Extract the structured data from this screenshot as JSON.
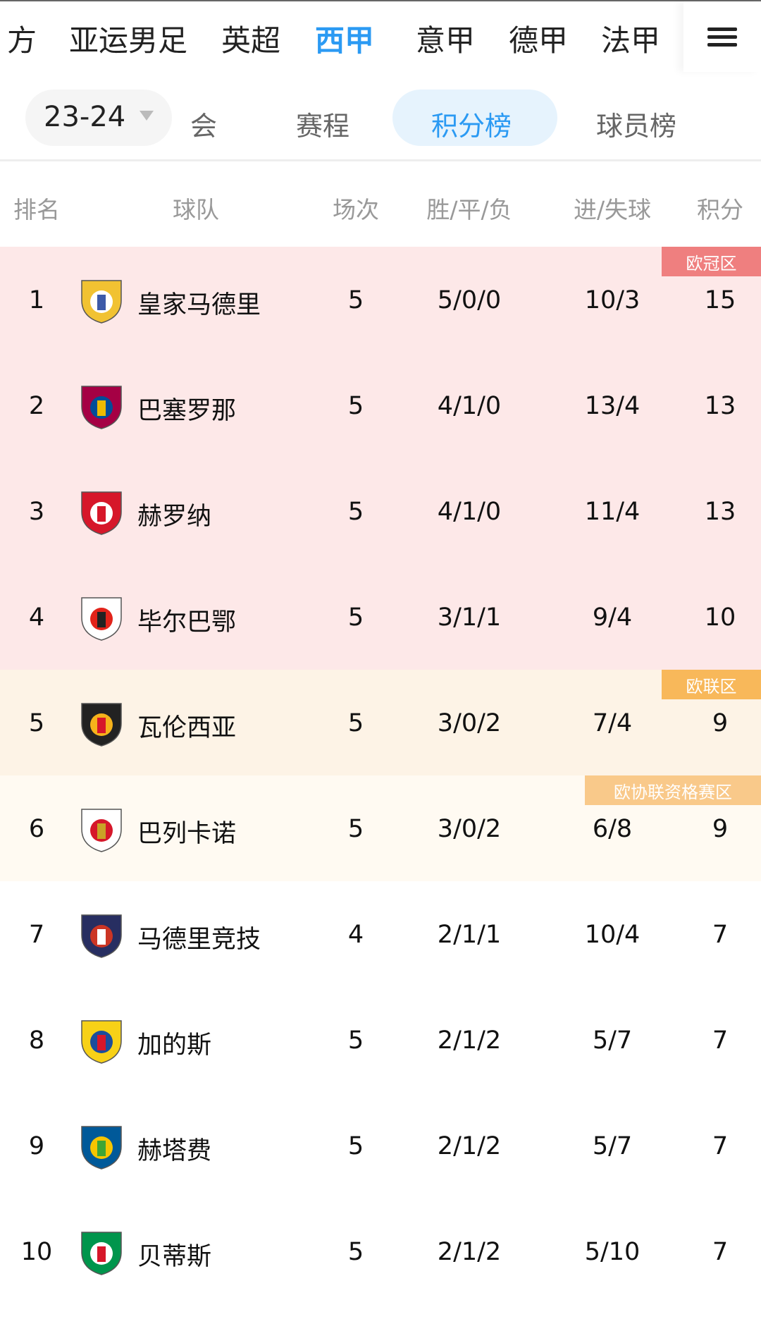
{
  "league_tabs": [
    {
      "label": "方"
    },
    {
      "label": "亚运男足"
    },
    {
      "label": "英超"
    },
    {
      "label": "西甲",
      "active": true
    },
    {
      "label": "意甲"
    },
    {
      "label": "德甲"
    },
    {
      "label": "法甲"
    }
  ],
  "menu_icon": "hamburger-menu-icon",
  "season": {
    "value": "23-24"
  },
  "sub_tabs": [
    {
      "label": "会"
    },
    {
      "label": "赛程"
    },
    {
      "label": "积分榜",
      "active": true
    },
    {
      "label": "球员榜"
    }
  ],
  "columns": {
    "rank": "排名",
    "team": "球队",
    "played": "场次",
    "wdl": "胜/平/负",
    "goals": "进/失球",
    "points": "积分"
  },
  "colors": {
    "accent": "#2b9af3",
    "ucl": "#ef7f7f",
    "uel": "#f8b85a",
    "uecl": "#f9c98a",
    "ucl_bg": "#fde8e8",
    "uel_bg": "#fdf3e6",
    "uecl_bg": "#fffaf2"
  },
  "rows": [
    {
      "rank": "1",
      "team": "皇家马德里",
      "played": "5",
      "wdl": "5/0/0",
      "goals": "10/3",
      "points": "15",
      "zone": "ucl",
      "badge": "欧冠区",
      "logo": [
        "#f1c232",
        "#ffffff",
        "#3d5aa8"
      ]
    },
    {
      "rank": "2",
      "team": "巴塞罗那",
      "played": "5",
      "wdl": "4/1/0",
      "goals": "13/4",
      "points": "13",
      "zone": "ucl",
      "logo": [
        "#a50044",
        "#004d98",
        "#edbb00"
      ]
    },
    {
      "rank": "3",
      "team": "赫罗纳",
      "played": "5",
      "wdl": "4/1/0",
      "goals": "11/4",
      "points": "13",
      "zone": "ucl",
      "logo": [
        "#d6172a",
        "#ffffff",
        "#d6172a"
      ]
    },
    {
      "rank": "4",
      "team": "毕尔巴鄂",
      "played": "5",
      "wdl": "3/1/1",
      "goals": "9/4",
      "points": "10",
      "zone": "ucl",
      "logo": [
        "#ffffff",
        "#e2231a",
        "#222222"
      ]
    },
    {
      "rank": "5",
      "team": "瓦伦西亚",
      "played": "5",
      "wdl": "3/0/2",
      "goals": "7/4",
      "points": "9",
      "zone": "uel",
      "badge": "欧联区",
      "logo": [
        "#222222",
        "#f6b21b",
        "#d6172a"
      ]
    },
    {
      "rank": "6",
      "team": "巴列卡诺",
      "played": "5",
      "wdl": "3/0/2",
      "goals": "6/8",
      "points": "9",
      "zone": "uecl",
      "badge": "欧协联资格赛区",
      "logo": [
        "#ffffff",
        "#d6172a",
        "#c9a227"
      ]
    },
    {
      "rank": "7",
      "team": "马德里竞技",
      "played": "4",
      "wdl": "2/1/1",
      "goals": "10/4",
      "points": "7",
      "zone": "",
      "logo": [
        "#272e61",
        "#cb3524",
        "#ffffff"
      ]
    },
    {
      "rank": "8",
      "team": "加的斯",
      "played": "5",
      "wdl": "2/1/2",
      "goals": "5/7",
      "points": "7",
      "zone": "",
      "logo": [
        "#f7d117",
        "#1a4d9c",
        "#d6172a"
      ]
    },
    {
      "rank": "9",
      "team": "赫塔费",
      "played": "5",
      "wdl": "2/1/2",
      "goals": "5/7",
      "points": "7",
      "zone": "",
      "logo": [
        "#005999",
        "#f6c500",
        "#3fa535"
      ]
    },
    {
      "rank": "10",
      "team": "贝蒂斯",
      "played": "5",
      "wdl": "2/1/2",
      "goals": "5/10",
      "points": "7",
      "zone": "",
      "logo": [
        "#00954c",
        "#ffffff",
        "#d6172a"
      ]
    }
  ]
}
